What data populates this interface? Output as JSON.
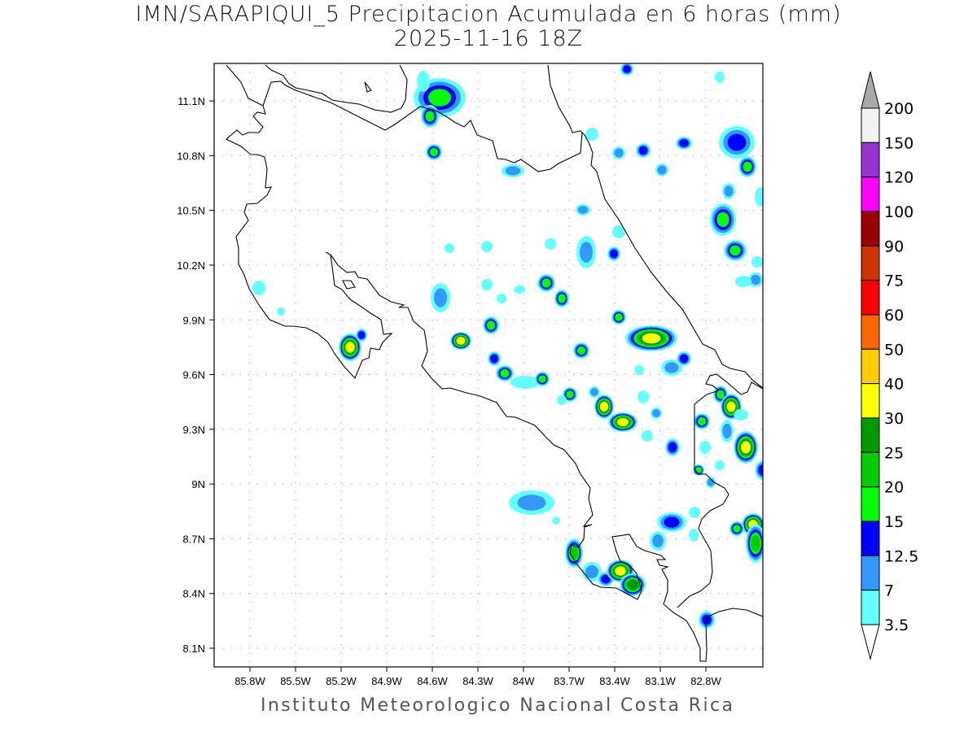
{
  "header": {
    "title": "IMN/SARAPIQUI_5 Precipitacion Acumulada en 6 horas (mm)",
    "subtitle": "2025-11-16 18Z"
  },
  "footer": "Instituto Meteorologico Nacional Costa Rica",
  "map": {
    "lon_ticks": [
      {
        "value": 85.8,
        "label": "85.8W"
      },
      {
        "value": 85.5,
        "label": "85.5W"
      },
      {
        "value": 85.2,
        "label": "85.2W"
      },
      {
        "value": 84.9,
        "label": "84.9W"
      },
      {
        "value": 84.6,
        "label": "84.6W"
      },
      {
        "value": 84.3,
        "label": "84.3W"
      },
      {
        "value": 84.0,
        "label": "84W"
      },
      {
        "value": 83.7,
        "label": "83.7W"
      },
      {
        "value": 83.4,
        "label": "83.4W"
      },
      {
        "value": 83.1,
        "label": "83.1W"
      },
      {
        "value": 82.8,
        "label": "82.8W"
      }
    ],
    "lat_ticks": [
      {
        "value": 11.1,
        "label": "11.1N"
      },
      {
        "value": 10.8,
        "label": "10.8N"
      },
      {
        "value": 10.5,
        "label": "10.5N"
      },
      {
        "value": 10.2,
        "label": "10.2N"
      },
      {
        "value": 9.9,
        "label": "9.9N"
      },
      {
        "value": 9.6,
        "label": "9.6N"
      },
      {
        "value": 9.3,
        "label": "9.3N"
      },
      {
        "value": 9.0,
        "label": "9N"
      },
      {
        "value": 8.7,
        "label": "8.7N"
      },
      {
        "value": 8.4,
        "label": "8.4N"
      },
      {
        "value": 8.1,
        "label": "8.1N"
      }
    ]
  },
  "legend": {
    "units": "mm",
    "labels": [
      "200",
      "150",
      "120",
      "100",
      "90",
      "75",
      "60",
      "50",
      "40",
      "30",
      "25",
      "20",
      "15",
      "12.5",
      "7",
      "3.5"
    ],
    "colors": [
      "#f2f2f2",
      "#9933cc",
      "#ff00ff",
      "#990000",
      "#cc3300",
      "#ff0000",
      "#ff6600",
      "#ffcc00",
      "#ffff00",
      "#009900",
      "#00cc00",
      "#00ff00",
      "#0000ff",
      "#3399ff",
      "#66ffff"
    ],
    "over_color": "#aaaaaa",
    "under_color": "#ffffff"
  }
}
